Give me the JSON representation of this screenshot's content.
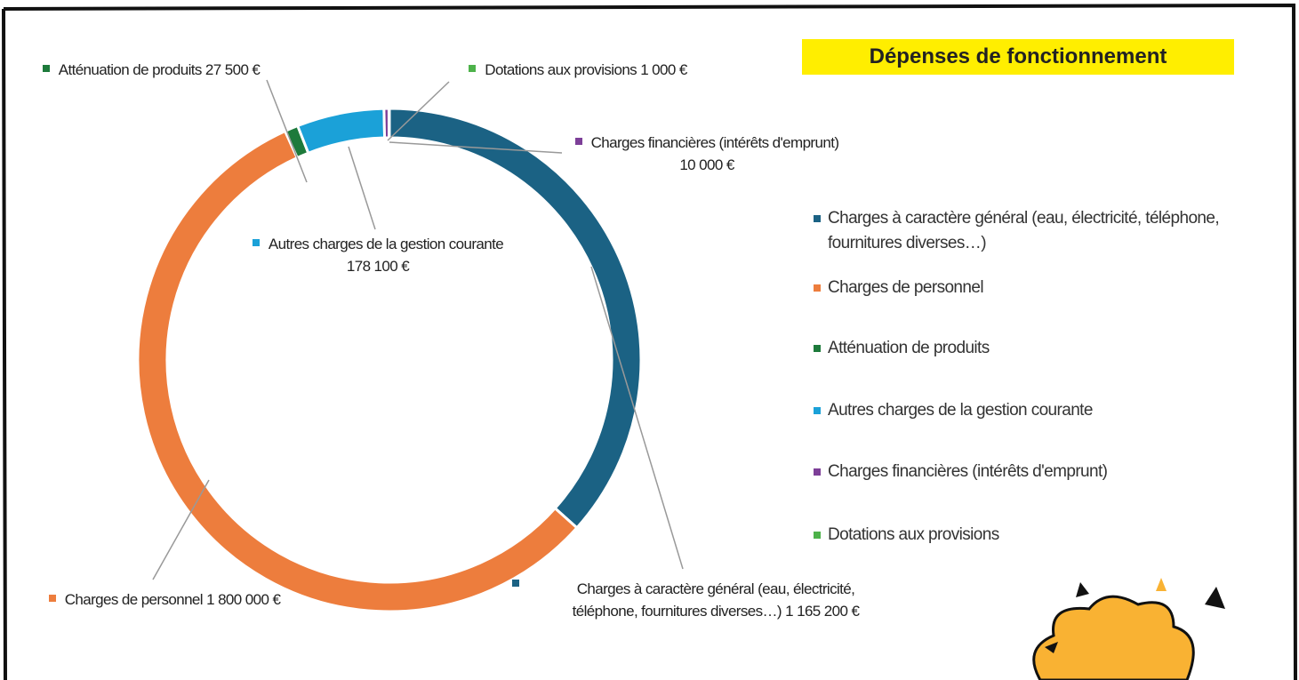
{
  "chart_data": {
    "type": "donut",
    "title": "Dépenses de fonctionnement",
    "categories": [
      "Charges à caractère général (eau, électricité, téléphone, fournitures diverses…)",
      "Charges de personnel",
      "Atténuation de produits",
      "Autres charges de la gestion courante",
      "Charges financières (intérêts d'emprunt)",
      "Dotations aux provisions"
    ],
    "values": [
      1165200,
      1800000,
      27500,
      178100,
      10000,
      1000
    ],
    "value_labels": [
      "1 165 200 €",
      "1 800 000 €",
      "27 500 €",
      "178 100 €",
      "10 000 €",
      "1 000 €"
    ],
    "colors": [
      "#1b6284",
      "#ed7d3d",
      "#1d7a3b",
      "#1ba1d8",
      "#7d3f98",
      "#4db24a"
    ],
    "legend": "right"
  }
}
